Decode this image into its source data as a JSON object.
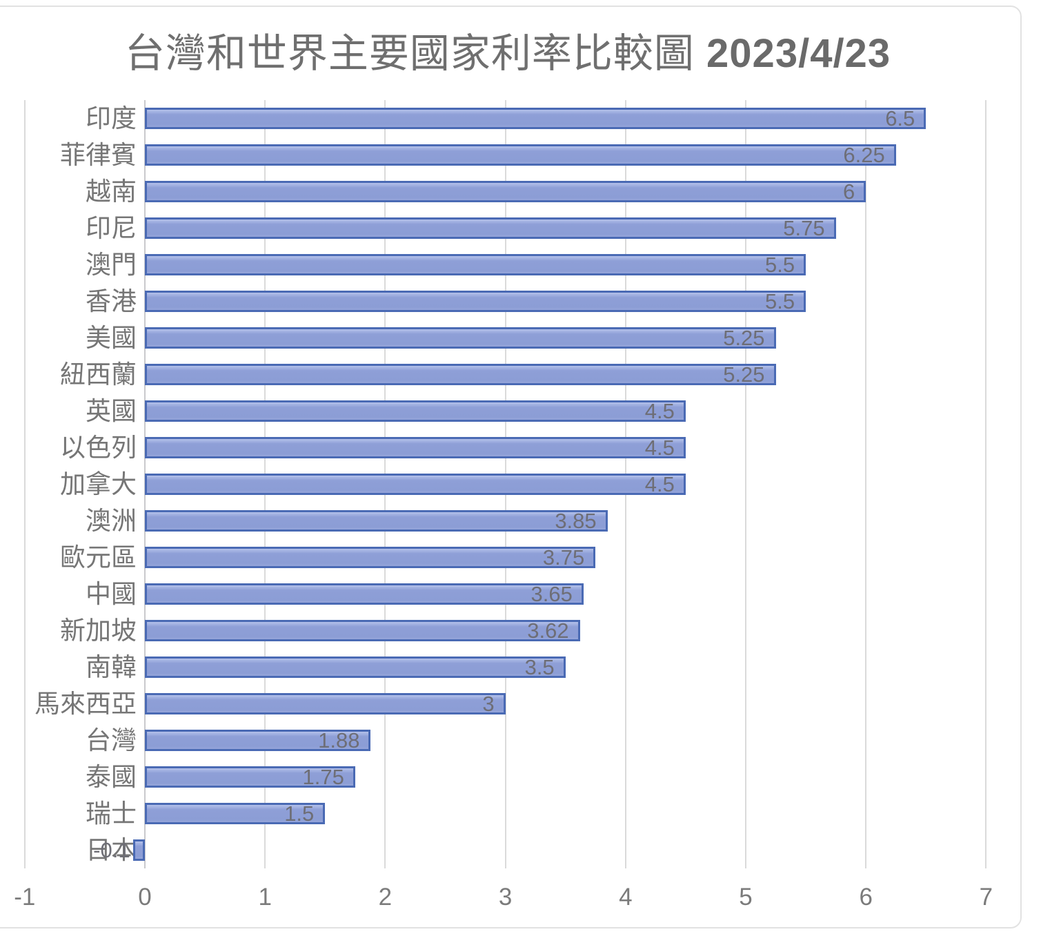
{
  "chart": {
    "title_text": "台灣和世界主要國家利率比較圖",
    "title_date": "2023/4/23",
    "colors": {
      "bar_fill": "#8e9fd7",
      "bar_fill_highlight": "#b4c1ea",
      "bar_border": "#4a6ab4",
      "gridline": "#dadada",
      "title_text": "#6f6f6f",
      "category_text": "#767676",
      "data_label_text": "#6e6e76",
      "tick_text": "#7b7b7b",
      "frame_border": "#e2e2e2"
    }
  },
  "chart_data": {
    "type": "bar",
    "orientation": "horizontal",
    "title": "台灣和世界主要國家利率比較圖 2023/4/23",
    "categories": [
      "印度",
      "菲律賓",
      "越南",
      "印尼",
      "澳門",
      "香港",
      "美國",
      "紐西蘭",
      "英國",
      "以色列",
      "加拿大",
      "澳洲",
      "歐元區",
      "中國",
      "新加坡",
      "南韓",
      "馬來西亞",
      "台灣",
      "泰國",
      "瑞士",
      "日本"
    ],
    "values": [
      6.5,
      6.25,
      6,
      5.75,
      5.5,
      5.5,
      5.25,
      5.25,
      4.5,
      4.5,
      4.5,
      3.85,
      3.75,
      3.65,
      3.62,
      3.5,
      3,
      1.88,
      1.75,
      1.5,
      -0.1
    ],
    "data_labels": [
      "6.5",
      "6.25",
      "6",
      "5.75",
      "5.5",
      "5.5",
      "5.25",
      "5.25",
      "4.5",
      "4.5",
      "4.5",
      "3.85",
      "3.75",
      "3.65",
      "3.62",
      "3.5",
      "3",
      "1.88",
      "1.75",
      "1.5",
      "-0.1"
    ],
    "xlabel": "",
    "ylabel": "",
    "xlim": [
      -1,
      7
    ],
    "x_ticks": [
      -1,
      0,
      1,
      2,
      3,
      4,
      5,
      6,
      7
    ],
    "grid": true,
    "legend": false,
    "data_label_position": "inside-end"
  }
}
